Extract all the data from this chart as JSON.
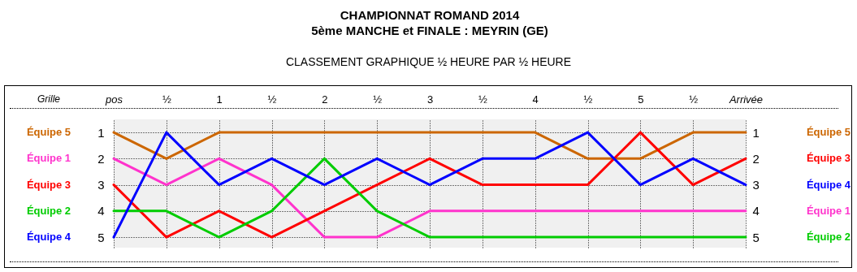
{
  "chart_data": {
    "type": "line",
    "title": "CHAMPIONNAT ROMAND 2014",
    "subtitle": "5ème MANCHE et FINALE : MEYRIN (GE)",
    "annotations": [
      "CLASSEMENT GRAPHIQUE ½ HEURE PAR ½ HEURE",
      "Grille"
    ],
    "categories": [
      "pos",
      "½",
      "1",
      "½",
      "2",
      "½",
      "3",
      "½",
      "4",
      "½",
      "5",
      "½",
      "Arrivée"
    ],
    "series": [
      {
        "name": "Équipe 5",
        "color": "#cc6600",
        "values": [
          1,
          2,
          1,
          1,
          1,
          1,
          1,
          1,
          1,
          2,
          2,
          1,
          1
        ]
      },
      {
        "name": "Équipe 1",
        "color": "#ff33cc",
        "values": [
          2,
          3,
          2,
          3,
          5,
          5,
          4,
          4,
          4,
          4,
          4,
          4,
          4
        ]
      },
      {
        "name": "Équipe 3",
        "color": "#ff0000",
        "values": [
          3,
          5,
          4,
          5,
          4,
          3,
          2,
          3,
          3,
          3,
          1,
          3,
          2
        ]
      },
      {
        "name": "Équipe 2",
        "color": "#00cc00",
        "values": [
          4,
          4,
          5,
          4,
          2,
          4,
          5,
          5,
          5,
          5,
          5,
          5,
          5
        ]
      },
      {
        "name": "Équipe 4",
        "color": "#0000ff",
        "values": [
          5,
          1,
          3,
          2,
          3,
          2,
          3,
          2,
          2,
          1,
          3,
          2,
          3
        ]
      }
    ],
    "ylim": [
      5.4,
      0.5
    ],
    "yticks": [
      1,
      2,
      3,
      4,
      5
    ],
    "y2lim": [
      5.4,
      0.5
    ],
    "y2ticks": [
      1,
      2,
      3,
      4,
      5
    ],
    "grid": true,
    "marker": "none",
    "line_style": "solid"
  }
}
